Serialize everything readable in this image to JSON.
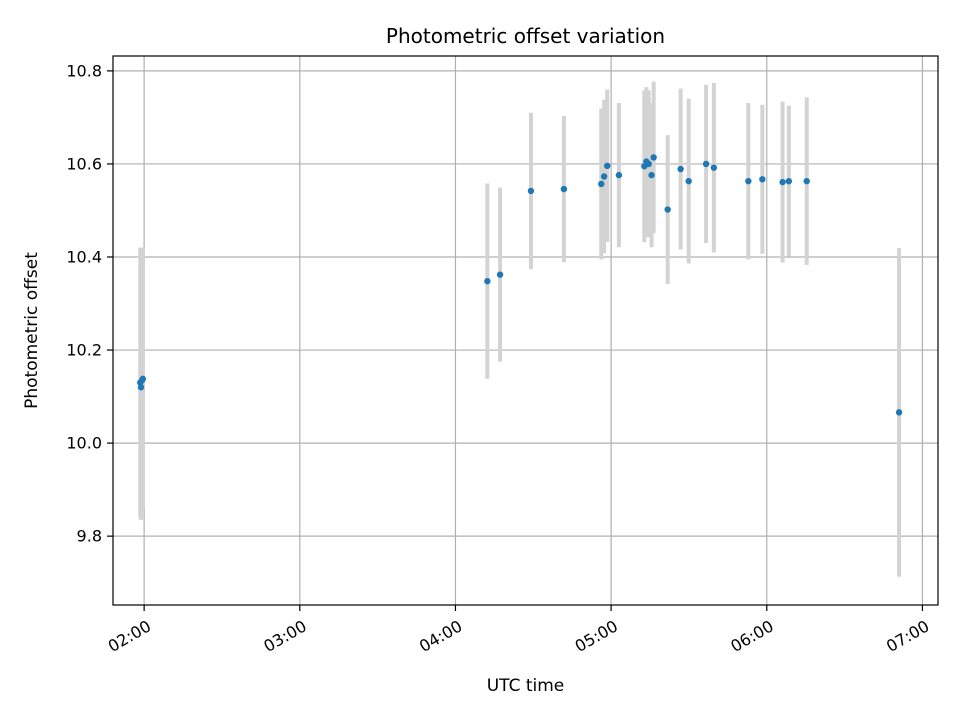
{
  "chart_data": {
    "type": "scatter",
    "title": "Photometric offset variation",
    "xlabel": "UTC time",
    "ylabel": "Photometric offset",
    "x_kind": "time-of-day",
    "xlim": [
      "01:48",
      "07:06"
    ],
    "ylim": [
      9.652,
      10.832
    ],
    "grid": true,
    "x_ticks": [
      "02:00",
      "03:00",
      "04:00",
      "05:00",
      "06:00",
      "07:00"
    ],
    "y_ticks": [
      9.8,
      10.0,
      10.2,
      10.4,
      10.6,
      10.8
    ],
    "colors": {
      "points": "#1f77b4",
      "error_bars": "#d3d3d3",
      "grid": "#b0b0b0"
    },
    "points": [
      {
        "x": "01:58:30",
        "y": 10.13,
        "err": 0.29
      },
      {
        "x": "01:58:48",
        "y": 10.12,
        "err": 0.285
      },
      {
        "x": "01:59:12",
        "y": 10.135,
        "err": 0.285
      },
      {
        "x": "01:59:30",
        "y": 10.138,
        "err": 0.28
      },
      {
        "x": "04:12:18",
        "y": 10.348,
        "err": 0.21
      },
      {
        "x": "04:17:12",
        "y": 10.362,
        "err": 0.187
      },
      {
        "x": "04:29:06",
        "y": 10.542,
        "err": 0.168
      },
      {
        "x": "04:41:48",
        "y": 10.546,
        "err": 0.157
      },
      {
        "x": "04:56:12",
        "y": 10.557,
        "err": 0.162
      },
      {
        "x": "04:57:18",
        "y": 10.573,
        "err": 0.165
      },
      {
        "x": "04:58:30",
        "y": 10.596,
        "err": 0.164
      },
      {
        "x": "05:03:00",
        "y": 10.576,
        "err": 0.155
      },
      {
        "x": "05:12:48",
        "y": 10.595,
        "err": 0.163
      },
      {
        "x": "05:13:36",
        "y": 10.605,
        "err": 0.16
      },
      {
        "x": "05:14:30",
        "y": 10.6,
        "err": 0.158
      },
      {
        "x": "05:15:36",
        "y": 10.576,
        "err": 0.155
      },
      {
        "x": "05:16:24",
        "y": 10.614,
        "err": 0.163
      },
      {
        "x": "05:21:48",
        "y": 10.502,
        "err": 0.16
      },
      {
        "x": "05:26:48",
        "y": 10.589,
        "err": 0.173
      },
      {
        "x": "05:29:54",
        "y": 10.563,
        "err": 0.177
      },
      {
        "x": "05:36:36",
        "y": 10.6,
        "err": 0.17
      },
      {
        "x": "05:39:36",
        "y": 10.592,
        "err": 0.182
      },
      {
        "x": "05:52:54",
        "y": 10.563,
        "err": 0.168
      },
      {
        "x": "05:58:18",
        "y": 10.567,
        "err": 0.16
      },
      {
        "x": "06:06:06",
        "y": 10.561,
        "err": 0.173
      },
      {
        "x": "06:08:30",
        "y": 10.563,
        "err": 0.162
      },
      {
        "x": "06:15:24",
        "y": 10.563,
        "err": 0.18
      },
      {
        "x": "06:51:00",
        "y": 10.066,
        "err": 0.353
      }
    ]
  }
}
